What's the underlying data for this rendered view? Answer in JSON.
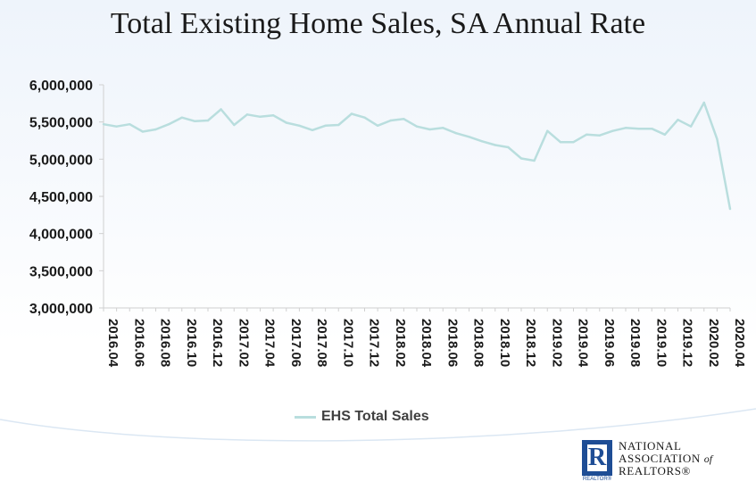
{
  "title": "Total Existing Home Sales, SA Annual Rate",
  "legend": {
    "label": "EHS Total Sales",
    "color": "#b9dede"
  },
  "logo": {
    "mark": "R",
    "mark_label": "REALTOR®",
    "line1": "NATIONAL",
    "line2": "ASSOCIATION",
    "of": "of",
    "line3": "REALTORS®"
  },
  "chart_data": {
    "type": "line",
    "title": "Total Existing Home Sales, SA Annual Rate",
    "xlabel": "",
    "ylabel": "",
    "ylim": [
      3000000,
      6000000
    ],
    "y_ticks": [
      "3,000,000",
      "3,500,000",
      "4,000,000",
      "4,500,000",
      "5,000,000",
      "5,500,000",
      "6,000,000"
    ],
    "x_tick_labels": [
      "2016.04",
      "2016.06",
      "2016.08",
      "2016.10",
      "2016.12",
      "2017.02",
      "2017.04",
      "2017.06",
      "2017.08",
      "2017.10",
      "2017.12",
      "2018.02",
      "2018.04",
      "2018.06",
      "2018.08",
      "2018.10",
      "2018.12",
      "2019.02",
      "2019.04",
      "2019.06",
      "2019.08",
      "2019.10",
      "2019.12",
      "2020.02",
      "2020.04"
    ],
    "categories": [
      "2016.04",
      "2016.05",
      "2016.06",
      "2016.07",
      "2016.08",
      "2016.09",
      "2016.10",
      "2016.11",
      "2016.12",
      "2017.01",
      "2017.02",
      "2017.03",
      "2017.04",
      "2017.05",
      "2017.06",
      "2017.07",
      "2017.08",
      "2017.09",
      "2017.10",
      "2017.11",
      "2017.12",
      "2018.01",
      "2018.02",
      "2018.03",
      "2018.04",
      "2018.05",
      "2018.06",
      "2018.07",
      "2018.08",
      "2018.09",
      "2018.10",
      "2018.11",
      "2018.12",
      "2019.01",
      "2019.02",
      "2019.03",
      "2019.04",
      "2019.05",
      "2019.06",
      "2019.07",
      "2019.08",
      "2019.09",
      "2019.10",
      "2019.11",
      "2019.12",
      "2020.01",
      "2020.02",
      "2020.03",
      "2020.04"
    ],
    "series": [
      {
        "name": "EHS Total Sales",
        "color": "#b9dede",
        "values": [
          5470000,
          5440000,
          5470000,
          5370000,
          5400000,
          5470000,
          5560000,
          5510000,
          5520000,
          5670000,
          5460000,
          5600000,
          5570000,
          5590000,
          5490000,
          5450000,
          5390000,
          5450000,
          5460000,
          5610000,
          5560000,
          5450000,
          5520000,
          5540000,
          5440000,
          5400000,
          5420000,
          5350000,
          5300000,
          5240000,
          5190000,
          5160000,
          5010000,
          4980000,
          5380000,
          5230000,
          5230000,
          5330000,
          5320000,
          5380000,
          5420000,
          5410000,
          5410000,
          5330000,
          5530000,
          5440000,
          5760000,
          5270000,
          4330000
        ]
      }
    ],
    "grid": false,
    "legend_position": "bottom"
  }
}
